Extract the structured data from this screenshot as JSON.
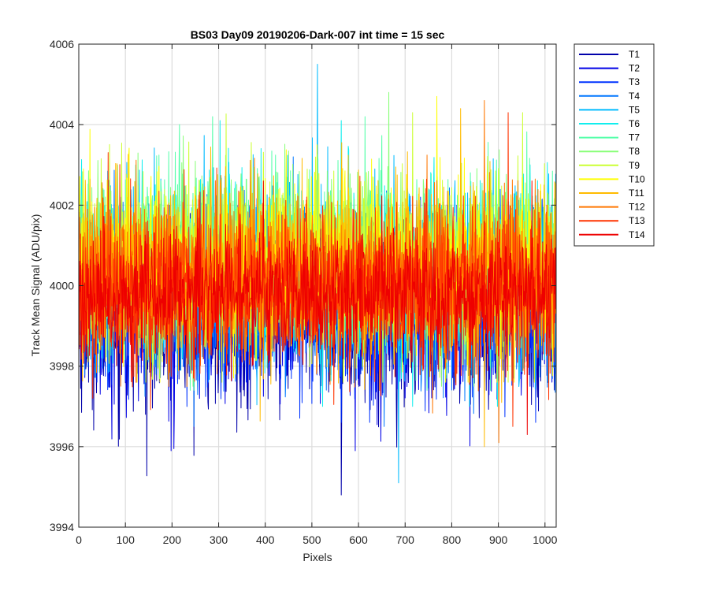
{
  "chart_data": {
    "type": "line",
    "title": "BS03 Day09 20190206-Dark-007 int time = 15 sec",
    "xlabel": "Pixels",
    "ylabel": "Track Mean Signal (ADU/pix)",
    "xlim": [
      0,
      1024
    ],
    "ylim": [
      3994,
      4006
    ],
    "xticks": [
      0,
      100,
      200,
      300,
      400,
      500,
      600,
      700,
      800,
      900,
      1000
    ],
    "yticks": [
      3994,
      3996,
      3998,
      4000,
      4002,
      4004,
      4006
    ],
    "grid": true,
    "legend_position": "outside-top-right",
    "num_points": 1024,
    "series": [
      {
        "name": "T1",
        "color": "#0000aa",
        "mean": 3999.3,
        "spread": 1.15,
        "upper_peak": 4001.8,
        "lower_peak": 3994.8
      },
      {
        "name": "T2",
        "color": "#0000e6",
        "mean": 3999.5,
        "spread": 1.1,
        "upper_peak": 4002.0,
        "lower_peak": 3995.9
      },
      {
        "name": "T3",
        "color": "#0033ff",
        "mean": 3999.6,
        "spread": 1.1,
        "upper_peak": 4002.2,
        "lower_peak": 3996.6
      },
      {
        "name": "T4",
        "color": "#0077ff",
        "mean": 3999.8,
        "spread": 1.1,
        "upper_peak": 4003.2,
        "lower_peak": 3996.5
      },
      {
        "name": "T5",
        "color": "#00bbff",
        "mean": 4000.2,
        "spread": 1.1,
        "upper_peak": 4005.5,
        "lower_peak": 3995.1
      },
      {
        "name": "T6",
        "color": "#11eeee",
        "mean": 4000.5,
        "spread": 1.05,
        "upper_peak": 4004.1,
        "lower_peak": 3997.0
      },
      {
        "name": "T7",
        "color": "#55ffaa",
        "mean": 4000.6,
        "spread": 1.05,
        "upper_peak": 4004.2,
        "lower_peak": 3997.4
      },
      {
        "name": "T8",
        "color": "#88ff77",
        "mean": 4000.7,
        "spread": 1.05,
        "upper_peak": 4004.8,
        "lower_peak": 3997.5
      },
      {
        "name": "T9",
        "color": "#ccff33",
        "mean": 4000.6,
        "spread": 1.05,
        "upper_peak": 4004.3,
        "lower_peak": 3997.6
      },
      {
        "name": "T10",
        "color": "#ffff00",
        "mean": 4000.4,
        "spread": 1.05,
        "upper_peak": 4004.7,
        "lower_peak": 3997.6
      },
      {
        "name": "T11",
        "color": "#ffbb00",
        "mean": 4000.3,
        "spread": 1.05,
        "upper_peak": 4004.4,
        "lower_peak": 3996.0
      },
      {
        "name": "T12",
        "color": "#ff7700",
        "mean": 4000.2,
        "spread": 1.05,
        "upper_peak": 4004.6,
        "lower_peak": 3996.1
      },
      {
        "name": "T13",
        "color": "#ff3300",
        "mean": 4000.0,
        "spread": 1.0,
        "upper_peak": 4004.3,
        "lower_peak": 3996.5
      },
      {
        "name": "T14",
        "color": "#ee0000",
        "mean": 3999.8,
        "spread": 0.8,
        "upper_peak": 4002.6,
        "lower_peak": 3996.3
      }
    ]
  }
}
